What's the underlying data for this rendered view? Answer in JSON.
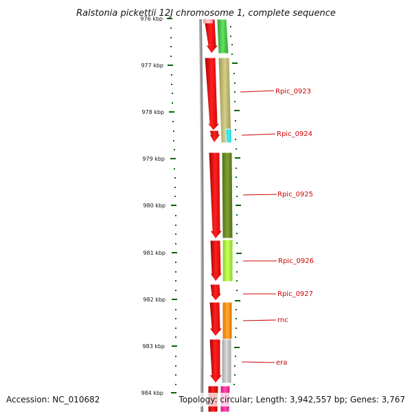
{
  "title": "Ralstonia pickettii 12J chromosome 1, complete sequence",
  "footer": {
    "accession": "Accession: NC_010682",
    "topology": "Topology: circular; Length: 3,942,557 bp; Genes: 3,767"
  },
  "ticks": [
    "976 kbp",
    "977 kbp",
    "978 kbp",
    "979 kbp",
    "980 kbp",
    "981 kbp",
    "982 kbp",
    "983 kbp",
    "984 kbp"
  ],
  "gene_labels": [
    "Rpic_0923",
    "Rpic_0924",
    "Rpic_0925",
    "Rpic_0926",
    "Rpic_0927",
    "rnc",
    "era"
  ],
  "colors": {
    "backbone": "#808080",
    "cds_red": "#ff0000",
    "cds_green": "#44cc44",
    "cds_khaki": "#bdb76b",
    "cds_cyan": "#00e5ee",
    "cds_olive": "#6b8e23",
    "cds_lime": "#adff2f",
    "cds_orange": "#ff8c00",
    "cds_gray": "#c0c0c0",
    "cds_pink": "#ff1493",
    "tick_green": "#006400",
    "label_red": "#cc0000"
  }
}
